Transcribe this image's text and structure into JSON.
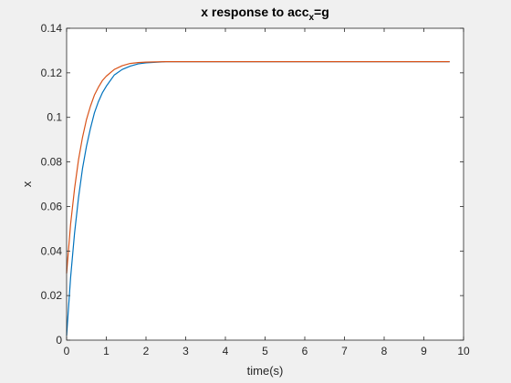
{
  "chart_data": {
    "type": "line",
    "title": {
      "prefix": "x response to acc",
      "subscript": "x",
      "suffix": "=g"
    },
    "xlabel": "time(s)",
    "ylabel": "x",
    "xlim": [
      0,
      10
    ],
    "ylim": [
      0,
      0.14
    ],
    "xticks": [
      0,
      1,
      2,
      3,
      4,
      5,
      6,
      7,
      8,
      9,
      10
    ],
    "xtick_labels": [
      "0",
      "1",
      "2",
      "3",
      "4",
      "5",
      "6",
      "7",
      "8",
      "9",
      "10"
    ],
    "yticks": [
      0,
      0.02,
      0.04,
      0.06,
      0.08,
      0.1,
      0.12,
      0.14
    ],
    "ytick_labels": [
      "0",
      "0.02",
      "0.04",
      "0.06",
      "0.08",
      "0.1",
      "0.12",
      "0.14"
    ],
    "grid": false,
    "series": [
      {
        "color": "#0072bd",
        "x": [
          0,
          0.1,
          0.2,
          0.3,
          0.4,
          0.5,
          0.6,
          0.7,
          0.8,
          0.9,
          1.0,
          1.2,
          1.4,
          1.6,
          1.8,
          2.0,
          2.5,
          3.0,
          4.0,
          5.0,
          6.0,
          7.0,
          8.0,
          9.0,
          9.65
        ],
        "y": [
          0.002,
          0.028,
          0.048,
          0.064,
          0.077,
          0.087,
          0.095,
          0.102,
          0.107,
          0.111,
          0.114,
          0.119,
          0.1215,
          0.123,
          0.124,
          0.1245,
          0.125,
          0.125,
          0.125,
          0.125,
          0.125,
          0.125,
          0.125,
          0.125,
          0.125
        ]
      },
      {
        "color": "#d95319",
        "x": [
          0,
          0.1,
          0.2,
          0.3,
          0.4,
          0.5,
          0.6,
          0.7,
          0.8,
          0.9,
          1.0,
          1.2,
          1.4,
          1.6,
          1.8,
          2.0,
          2.5,
          3.0,
          4.0,
          5.0,
          6.0,
          7.0,
          8.0,
          9.0,
          9.65
        ],
        "y": [
          0.03,
          0.052,
          0.068,
          0.081,
          0.091,
          0.099,
          0.105,
          0.11,
          0.1135,
          0.1165,
          0.1185,
          0.1215,
          0.1232,
          0.1242,
          0.1246,
          0.1248,
          0.125,
          0.125,
          0.125,
          0.125,
          0.125,
          0.125,
          0.125,
          0.125,
          0.125
        ]
      }
    ]
  }
}
